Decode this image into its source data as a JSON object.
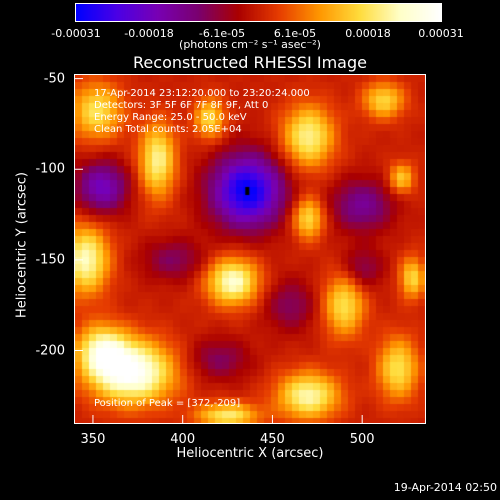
{
  "colorbar": {
    "tick_labels": [
      "-0.00031",
      "-0.00018",
      "-6.1e-05",
      "6.1e-05",
      "0.00018",
      "0.00031"
    ],
    "units": "(photons cm⁻² s⁻¹ asec⁻²)",
    "stops": [
      "#0000ff",
      "#4b00e6",
      "#7800b4",
      "#7a0070",
      "#aa0000",
      "#e63c00",
      "#ff9600",
      "#ffdc3c",
      "#ffffc8",
      "#ffffff"
    ]
  },
  "chart_data": {
    "type": "heatmap",
    "title": "Reconstructed RHESSI Image",
    "xlabel": "Heliocentric X (arcsec)",
    "ylabel": "Heliocentric Y (arcsec)",
    "xlim": [
      340,
      535
    ],
    "ylim": [
      -240,
      -48
    ],
    "x_ticks": [
      350,
      400,
      450,
      500
    ],
    "y_ticks": [
      -50,
      -100,
      -150,
      -200
    ],
    "x_tick_labels": [
      "350",
      "400",
      "450",
      "500"
    ],
    "y_tick_labels": [
      "-50",
      "-100",
      "-150",
      "-200"
    ],
    "value_range": [
      -0.00031,
      0.00031
    ],
    "peak": [
      372,
      -209
    ],
    "sources": [
      {
        "x": 372,
        "y": -212,
        "sx": 16,
        "sy": 12,
        "amp": 1.0
      },
      {
        "x": 355,
        "y": -200,
        "sx": 10,
        "sy": 10,
        "amp": 0.7
      },
      {
        "x": 346,
        "y": -150,
        "sx": 9,
        "sy": 13,
        "amp": 0.78
      },
      {
        "x": 352,
        "y": -68,
        "sx": 10,
        "sy": 11,
        "amp": 0.6
      },
      {
        "x": 386,
        "y": -95,
        "sx": 7,
        "sy": 14,
        "amp": 0.7
      },
      {
        "x": 415,
        "y": -72,
        "sx": 6,
        "sy": 8,
        "amp": 0.55
      },
      {
        "x": 470,
        "y": -82,
        "sx": 10,
        "sy": 12,
        "amp": 0.7
      },
      {
        "x": 512,
        "y": -62,
        "sx": 8,
        "sy": 7,
        "amp": 0.55
      },
      {
        "x": 522,
        "y": -105,
        "sx": 5,
        "sy": 6,
        "amp": 0.5
      },
      {
        "x": 470,
        "y": -127,
        "sx": 6,
        "sy": 8,
        "amp": 0.6
      },
      {
        "x": 428,
        "y": -162,
        "sx": 10,
        "sy": 9,
        "amp": 0.82
      },
      {
        "x": 490,
        "y": -175,
        "sx": 8,
        "sy": 12,
        "amp": 0.6
      },
      {
        "x": 528,
        "y": -160,
        "sx": 5,
        "sy": 8,
        "amp": 0.55
      },
      {
        "x": 470,
        "y": -225,
        "sx": 12,
        "sy": 9,
        "amp": 0.75
      },
      {
        "x": 520,
        "y": -210,
        "sx": 8,
        "sy": 12,
        "amp": 0.6
      },
      {
        "x": 425,
        "y": -236,
        "sx": 12,
        "sy": 5,
        "amp": 0.65
      },
      {
        "x": 436,
        "y": -112,
        "sx": 14,
        "sy": 14,
        "amp": -1.0
      },
      {
        "x": 355,
        "y": -110,
        "sx": 10,
        "sy": 10,
        "amp": -0.6
      },
      {
        "x": 500,
        "y": -120,
        "sx": 12,
        "sy": 10,
        "amp": -0.45
      },
      {
        "x": 395,
        "y": -150,
        "sx": 12,
        "sy": 8,
        "amp": -0.3
      },
      {
        "x": 460,
        "y": -175,
        "sx": 10,
        "sy": 10,
        "amp": -0.3
      },
      {
        "x": 500,
        "y": -155,
        "sx": 8,
        "sy": 8,
        "amp": -0.3
      },
      {
        "x": 420,
        "y": -205,
        "sx": 12,
        "sy": 8,
        "amp": -0.3
      }
    ],
    "annotations": [
      "17-Apr-2014 23:12:20.000 to 23:20:24.000",
      "Detectors: 3F 5F 6F 7F 8F 9F, Att 0",
      "Energy Range: 25.0 - 50.0 keV",
      "Clean     Total counts: 2.05E+04"
    ],
    "peak_label": "Position of Peak = [372,-209]"
  },
  "footer": {
    "timestamp": "19-Apr-2014 02:50"
  }
}
